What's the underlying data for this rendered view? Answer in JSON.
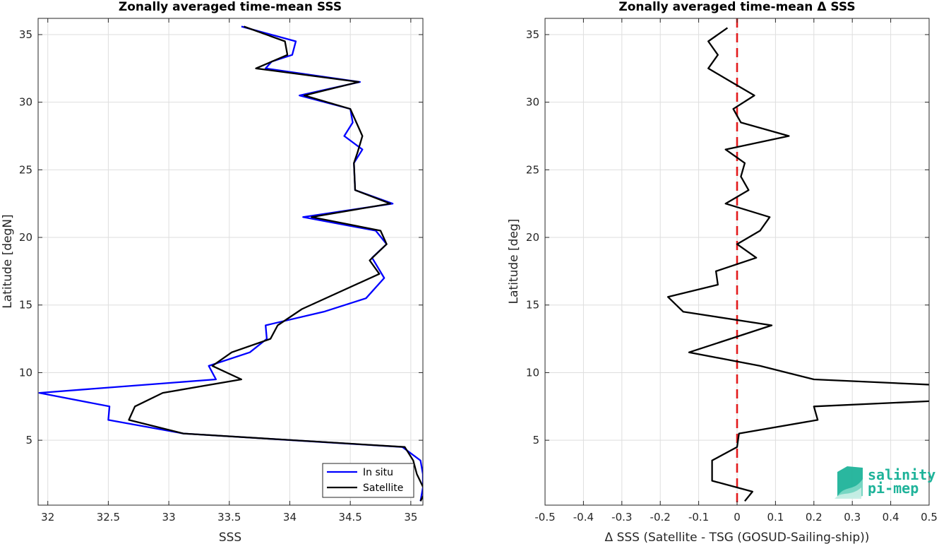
{
  "colors": {
    "in_situ": "#0000ff",
    "satellite": "#000000",
    "zero_line": "#e31a1c",
    "grid": "#dedede",
    "logo_teal": "#1fb39a"
  },
  "logo": {
    "line1": "salinity",
    "line2": "pi-mep"
  },
  "chart_data": [
    {
      "type": "line",
      "title": "Zonally averaged time-mean SSS",
      "xlabel": "SSS",
      "ylabel": "Latitude [degN]",
      "xlim": [
        31.92,
        35.1
      ],
      "ylim": [
        0.2,
        36.2
      ],
      "xticks": [
        32,
        32.5,
        33,
        33.5,
        34,
        34.5,
        35
      ],
      "xtick_labels": [
        "32",
        "32.5",
        "33",
        "33.5",
        "34",
        "34.5",
        "35"
      ],
      "yticks": [
        5,
        10,
        15,
        20,
        25,
        30,
        35
      ],
      "ytick_labels": [
        "5",
        "10",
        "15",
        "20",
        "25",
        "30",
        "35"
      ],
      "grid": true,
      "legend": {
        "position": "bottom-right",
        "entries": [
          "In situ",
          "Satellite"
        ]
      },
      "series": [
        {
          "name": "In situ",
          "color": "#0000ff",
          "points": [
            [
              35.08,
              0.5
            ],
            [
              35.1,
              1.5
            ],
            [
              35.1,
              2.5
            ],
            [
              35.08,
              3.5
            ],
            [
              34.93,
              4.5
            ],
            [
              33.12,
              5.5
            ],
            [
              32.5,
              6.5
            ],
            [
              32.51,
              7.5
            ],
            [
              31.93,
              8.5
            ],
            [
              33.39,
              9.5
            ],
            [
              33.33,
              10.5
            ],
            [
              33.67,
              11.5
            ],
            [
              33.81,
              12.5
            ],
            [
              33.8,
              13.5
            ],
            [
              34.28,
              14.5
            ],
            [
              34.63,
              15.5
            ],
            [
              34.78,
              17.0
            ],
            [
              34.68,
              18.5
            ],
            [
              34.8,
              19.5
            ],
            [
              34.71,
              20.5
            ],
            [
              34.11,
              21.5
            ],
            [
              34.85,
              22.5
            ],
            [
              34.54,
              23.5
            ],
            [
              34.53,
              25.5
            ],
            [
              34.6,
              26.5
            ],
            [
              34.45,
              27.5
            ],
            [
              34.52,
              28.5
            ],
            [
              34.5,
              29.5
            ],
            [
              34.08,
              30.5
            ],
            [
              34.58,
              31.5
            ],
            [
              33.8,
              32.5
            ],
            [
              33.85,
              33.0
            ],
            [
              34.02,
              33.5
            ],
            [
              34.05,
              34.5
            ],
            [
              33.6,
              35.6
            ]
          ]
        },
        {
          "name": "Satellite",
          "color": "#000000",
          "points": [
            [
              35.08,
              0.5
            ],
            [
              35.12,
              1.2
            ],
            [
              35.05,
              2.5
            ],
            [
              35.02,
              3.5
            ],
            [
              34.95,
              4.5
            ],
            [
              33.12,
              5.5
            ],
            [
              32.67,
              6.5
            ],
            [
              32.72,
              7.5
            ],
            [
              32.95,
              8.5
            ],
            [
              33.6,
              9.5
            ],
            [
              33.36,
              10.5
            ],
            [
              33.52,
              11.5
            ],
            [
              33.84,
              12.5
            ],
            [
              33.9,
              13.5
            ],
            [
              34.1,
              14.7
            ],
            [
              34.74,
              17.3
            ],
            [
              34.66,
              18.3
            ],
            [
              34.8,
              19.5
            ],
            [
              34.75,
              20.5
            ],
            [
              34.18,
              21.5
            ],
            [
              34.83,
              22.5
            ],
            [
              34.54,
              23.5
            ],
            [
              34.53,
              25.5
            ],
            [
              34.56,
              26.3
            ],
            [
              34.6,
              27.5
            ],
            [
              34.5,
              29.5
            ],
            [
              34.12,
              30.5
            ],
            [
              34.57,
              31.5
            ],
            [
              33.72,
              32.5
            ],
            [
              33.98,
              33.5
            ],
            [
              33.96,
              34.5
            ],
            [
              33.62,
              35.6
            ]
          ]
        }
      ]
    },
    {
      "type": "line",
      "title": "Zonally averaged time-mean Δ SSS",
      "xlabel": "Δ SSS (Satellite - TSG (GOSUD-Sailing-ship))",
      "ylabel": "Latitude [deg]",
      "xlim": [
        -0.5,
        0.5
      ],
      "ylim": [
        0.2,
        36.2
      ],
      "xticks": [
        -0.5,
        -0.4,
        -0.3,
        -0.2,
        -0.1,
        0,
        0.1,
        0.2,
        0.3,
        0.4,
        0.5
      ],
      "xtick_labels": [
        "-0.5",
        "-0.4",
        "-0.3",
        "-0.2",
        "-0.1",
        "0",
        "0.1",
        "0.2",
        "0.3",
        "0.4",
        "0.5"
      ],
      "yticks": [
        5,
        10,
        15,
        20,
        25,
        30,
        35
      ],
      "ytick_labels": [
        "5",
        "10",
        "15",
        "20",
        "25",
        "30",
        "35"
      ],
      "grid": true,
      "reference_line": {
        "x": 0,
        "style": "dashed",
        "color": "#e31a1c"
      },
      "series": [
        {
          "color": "#000000",
          "points": [
            [
              0.02,
              0.5
            ],
            [
              0.04,
              1.2
            ],
            [
              -0.065,
              2.0
            ],
            [
              -0.065,
              3.5
            ],
            [
              0,
              4.5
            ],
            [
              0.005,
              5.5
            ],
            [
              0.21,
              6.5
            ],
            [
              0.2,
              7.5
            ],
            [
              0.51,
              7.9
            ],
            [
              0.51,
              9.1
            ],
            [
              0.2,
              9.5
            ],
            [
              0.06,
              10.5
            ],
            [
              -0.125,
              11.5
            ],
            [
              0.09,
              13.5
            ],
            [
              -0.14,
              14.5
            ],
            [
              -0.18,
              15.6
            ],
            [
              -0.05,
              16.5
            ],
            [
              -0.055,
              17.5
            ],
            [
              0.05,
              18.5
            ],
            [
              0,
              19.5
            ],
            [
              0.06,
              20.5
            ],
            [
              0.085,
              21.5
            ],
            [
              -0.03,
              22.5
            ],
            [
              0.03,
              23.5
            ],
            [
              0.01,
              24.5
            ],
            [
              0.02,
              25.5
            ],
            [
              -0.03,
              26.5
            ],
            [
              0.135,
              27.5
            ],
            [
              0.01,
              28.5
            ],
            [
              -0.01,
              29.5
            ],
            [
              0.045,
              30.5
            ],
            [
              -0.015,
              31.5
            ],
            [
              -0.075,
              32.5
            ],
            [
              -0.05,
              33.5
            ],
            [
              -0.075,
              34.5
            ],
            [
              -0.025,
              35.5
            ]
          ]
        }
      ]
    }
  ]
}
